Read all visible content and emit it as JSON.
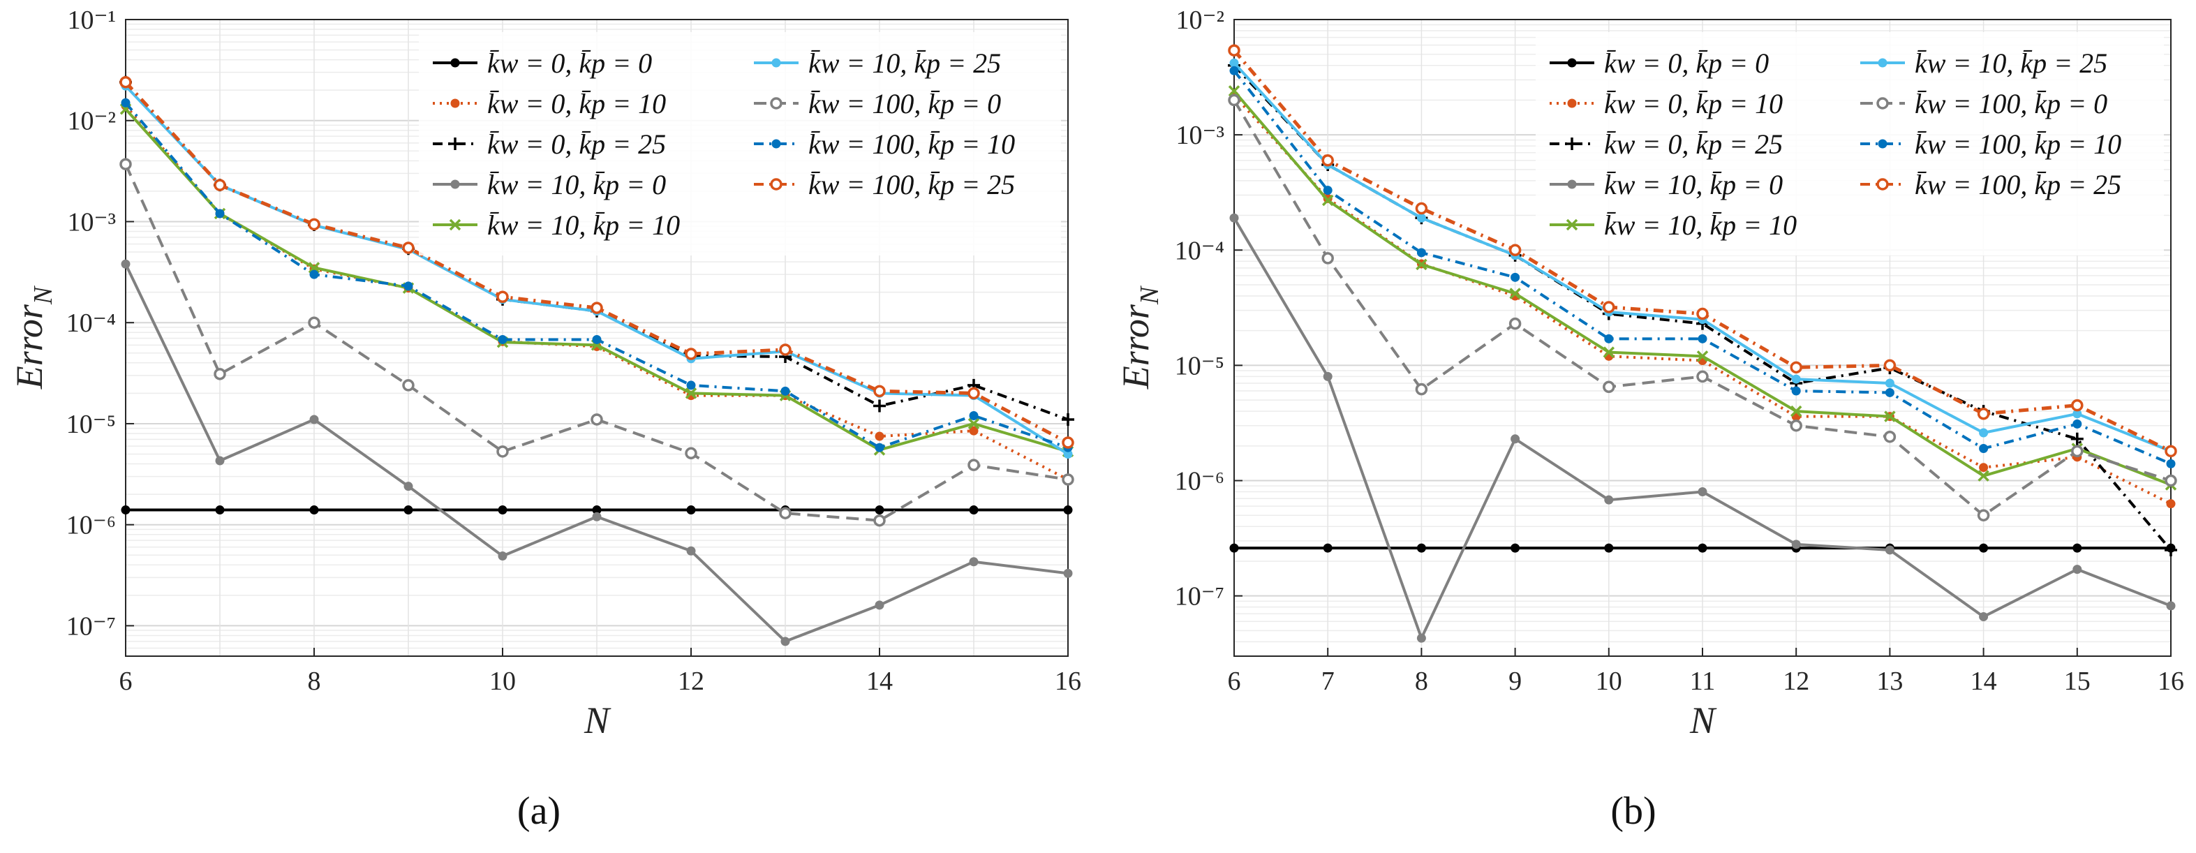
{
  "panel_labels": {
    "a": "(a)",
    "b": "(b)"
  },
  "legend_labels": [
    "k̄w = 0, k̄p = 0",
    "k̄w = 0, k̄p = 10",
    "k̄w = 0, k̄p = 25",
    "k̄w = 10, k̄p = 0",
    "k̄w = 10, k̄p = 10",
    "k̄w = 10, k̄p = 25",
    "k̄w = 100, k̄p = 0",
    "k̄w = 100, k̄p = 10",
    "k̄w = 100, k̄p = 25"
  ],
  "series_styles": [
    {
      "color": "#000000",
      "dash": "",
      "marker": "dot"
    },
    {
      "color": "#D95319",
      "dash": "3,7",
      "marker": "dot"
    },
    {
      "color": "#000000",
      "dash": "14,8,3,8",
      "marker": "plus"
    },
    {
      "color": "#808080",
      "dash": "",
      "marker": "dot"
    },
    {
      "color": "#77AC30",
      "dash": "",
      "marker": "x"
    },
    {
      "color": "#4DBEEE",
      "dash": "",
      "marker": "dot"
    },
    {
      "color": "#808080",
      "dash": "18,10",
      "marker": "circle"
    },
    {
      "color": "#0072BD",
      "dash": "14,8,3,8",
      "marker": "dot"
    },
    {
      "color": "#D95319",
      "dash": "14,8,3,8",
      "marker": "circle"
    }
  ],
  "chart_data": [
    {
      "type": "line",
      "panel": "(a)",
      "xlabel": "N",
      "ylabel": "Error_N",
      "yscale": "log",
      "xlim": [
        6,
        16
      ],
      "ylim": [
        5e-08,
        0.1
      ],
      "x_ticks": [
        6,
        8,
        10,
        12,
        14,
        16
      ],
      "y_ticks": [
        "10^-7",
        "10^-6",
        "10^-5",
        "10^-4",
        "10^-3",
        "10^-2",
        "10^-1"
      ],
      "grid": true,
      "legend": "top-right, two columns",
      "x": [
        6,
        7,
        8,
        9,
        10,
        11,
        12,
        13,
        14,
        15,
        16
      ],
      "series": [
        {
          "name": "k̄w = 0, k̄p = 0",
          "values": [
            1.4e-06,
            1.4e-06,
            1.4e-06,
            1.4e-06,
            1.4e-06,
            1.4e-06,
            1.4e-06,
            1.4e-06,
            1.4e-06,
            1.4e-06,
            1.4e-06
          ]
        },
        {
          "name": "k̄w = 0, k̄p = 10",
          "values": [
            0.014,
            0.0012,
            0.00034,
            0.00022,
            6.5e-05,
            5.8e-05,
            1.9e-05,
            1.9e-05,
            7.5e-06,
            8.5e-06,
            2.8e-06
          ]
        },
        {
          "name": "k̄w = 0, k̄p = 25",
          "values": [
            0.024,
            0.0023,
            0.00093,
            0.00054,
            0.00017,
            0.00013,
            4.7e-05,
            4.6e-05,
            1.5e-05,
            2.4e-05,
            1.1e-05
          ]
        },
        {
          "name": "k̄w = 10, k̄p = 0",
          "values": [
            0.00038,
            4.3e-06,
            1.1e-05,
            2.4e-06,
            4.9e-07,
            1.2e-06,
            5.5e-07,
            7e-08,
            1.6e-07,
            4.3e-07,
            3.3e-07
          ]
        },
        {
          "name": "k̄w = 10, k̄p = 10",
          "values": [
            0.013,
            0.0012,
            0.00035,
            0.00022,
            6.4e-05,
            6e-05,
            2e-05,
            1.9e-05,
            5.5e-06,
            1e-05,
            5.3e-06
          ]
        },
        {
          "name": "k̄w = 10, k̄p = 25",
          "values": [
            0.022,
            0.0023,
            0.00092,
            0.00053,
            0.00017,
            0.00013,
            4.4e-05,
            5.2e-05,
            2e-05,
            1.9e-05,
            5e-06
          ]
        },
        {
          "name": "k̄w = 100, k̄p = 0",
          "values": [
            0.0037,
            3.1e-05,
            0.0001,
            2.4e-05,
            5.3e-06,
            1.1e-05,
            5.1e-06,
            1.3e-06,
            1.1e-06,
            3.9e-06,
            2.8e-06
          ]
        },
        {
          "name": "k̄w = 100, k̄p = 10",
          "values": [
            0.015,
            0.0012,
            0.0003,
            0.00023,
            6.8e-05,
            6.8e-05,
            2.4e-05,
            2.1e-05,
            5.8e-06,
            1.2e-05,
            5.8e-06
          ]
        },
        {
          "name": "k̄w = 100, k̄p = 25",
          "values": [
            0.024,
            0.0023,
            0.00094,
            0.00055,
            0.00018,
            0.00014,
            4.9e-05,
            5.4e-05,
            2.1e-05,
            2e-05,
            6.5e-06
          ]
        }
      ]
    },
    {
      "type": "line",
      "panel": "(b)",
      "xlabel": "N",
      "ylabel": "Error_N",
      "yscale": "log",
      "xlim": [
        6,
        16
      ],
      "ylim": [
        3e-08,
        0.01
      ],
      "x_ticks": [
        6,
        7,
        8,
        9,
        10,
        11,
        12,
        13,
        14,
        15,
        16
      ],
      "y_ticks": [
        "10^-7",
        "10^-6",
        "10^-5",
        "10^-4",
        "10^-3",
        "10^-2"
      ],
      "grid": true,
      "legend": "top-right, two columns",
      "x": [
        6,
        7,
        8,
        9,
        10,
        11,
        12,
        13,
        14,
        15,
        16
      ],
      "series": [
        {
          "name": "k̄w = 0, k̄p = 0",
          "values": [
            2.6e-07,
            2.6e-07,
            2.6e-07,
            2.6e-07,
            2.6e-07,
            2.6e-07,
            2.6e-07,
            2.6e-07,
            2.6e-07,
            2.6e-07,
            2.6e-07
          ]
        },
        {
          "name": "k̄w = 0, k̄p = 10",
          "values": [
            0.0022,
            0.00028,
            7.6e-05,
            4e-05,
            1.2e-05,
            1.1e-05,
            3.6e-06,
            3.6e-06,
            1.3e-06,
            1.6e-06,
            6.3e-07
          ]
        },
        {
          "name": "k̄w = 0, k̄p = 25",
          "values": [
            0.004,
            0.00055,
            0.00019,
            9e-05,
            2.8e-05,
            2.3e-05,
            7e-06,
            9.5e-06,
            4e-06,
            2.3e-06,
            2.5e-07
          ]
        },
        {
          "name": "k̄w = 10, k̄p = 0",
          "values": [
            0.00019,
            8e-06,
            4.3e-08,
            2.3e-06,
            6.8e-07,
            8e-07,
            2.8e-07,
            2.5e-07,
            6.6e-08,
            1.7e-07,
            8.2e-08
          ]
        },
        {
          "name": "k̄w = 10, k̄p = 10",
          "values": [
            0.0024,
            0.00027,
            7.5e-05,
            4.2e-05,
            1.3e-05,
            1.2e-05,
            4e-06,
            3.6e-06,
            1.1e-06,
            1.9e-06,
            9.2e-07
          ]
        },
        {
          "name": "k̄w = 10, k̄p = 25",
          "values": [
            0.0042,
            0.00055,
            0.00019,
            9e-05,
            2.9e-05,
            2.5e-05,
            7.6e-06,
            7e-06,
            2.6e-06,
            3.8e-06,
            1.8e-06
          ]
        },
        {
          "name": "k̄w = 100, k̄p = 0",
          "values": [
            0.002,
            8.5e-05,
            6.2e-06,
            2.3e-05,
            6.5e-06,
            8e-06,
            3e-06,
            2.4e-06,
            5e-07,
            1.8e-06,
            1e-06
          ]
        },
        {
          "name": "k̄w = 100, k̄p = 10",
          "values": [
            0.0036,
            0.00033,
            9.5e-05,
            5.8e-05,
            1.7e-05,
            1.7e-05,
            6e-06,
            5.8e-06,
            1.9e-06,
            3.1e-06,
            1.4e-06
          ]
        },
        {
          "name": "k̄w = 100, k̄p = 25",
          "values": [
            0.0054,
            0.0006,
            0.00023,
            0.0001,
            3.2e-05,
            2.8e-05,
            9.6e-06,
            1e-05,
            3.8e-06,
            4.5e-06,
            1.8e-06
          ]
        }
      ]
    }
  ]
}
